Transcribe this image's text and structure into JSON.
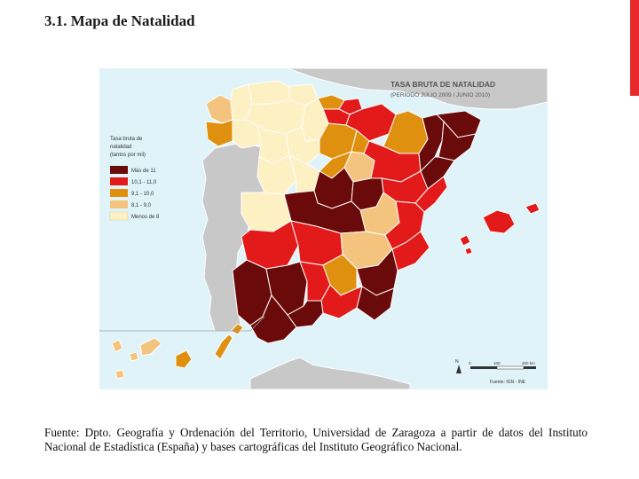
{
  "slide": {
    "title": "3.1. Mapa de Natalidad",
    "accent_color": "#e8282b",
    "caption_line1": "Fuente: Dpto. Geografía y Ordenación del Territorio, Universidad de Zaragoza a partir de datos del",
    "caption_line2": "Instituto Nacional de Estadística (España) y bases cartográficas del Instituto Geográfico Nacional."
  },
  "map": {
    "title": "TASA BRUTA DE NATALIDAD",
    "subtitle": "(PERÍODO JULIO 2009 / JUNIO 2010)",
    "source": "Fuente: IGN - INE",
    "sea_color": "#dff3f8",
    "land_outside_color": "#c8c8c8",
    "legend": {
      "title_lines": [
        "Tasa bruta de",
        "natalidad",
        "(tantos por mil)"
      ],
      "items": [
        {
          "label": "Más de 11",
          "color": "#6b0a0a"
        },
        {
          "label": "10,1 - 11,0",
          "color": "#e21a1a"
        },
        {
          "label": "9,1 - 10,0",
          "color": "#e0900f"
        },
        {
          "label": "8,1 - 9,0",
          "color": "#f4c47e"
        },
        {
          "label": "Menos de 8",
          "color": "#fdf0c2"
        }
      ]
    },
    "scale": {
      "labels": [
        "0",
        "100",
        "200 km"
      ]
    },
    "north_label": "N"
  }
}
